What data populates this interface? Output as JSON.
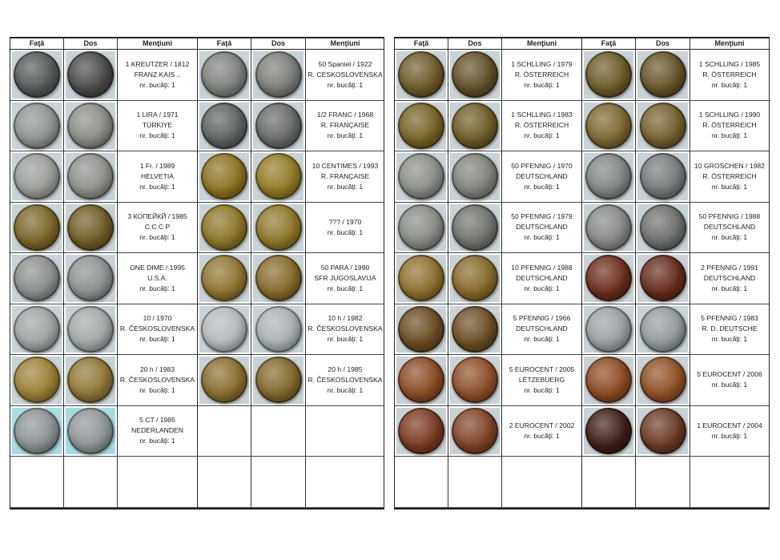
{
  "headers": [
    "Faţă",
    "Dos",
    "Menţiuni",
    "Faţă",
    "Dos",
    "Menţiuni"
  ],
  "photo_bg": "#c9d2d6",
  "tables": [
    {
      "left": [
        {
          "lines": [
            "1 KREUTZER / 1812",
            "FRANZ KAIS ..",
            "nr. bucăţi: 1"
          ],
          "front": "#55585a",
          "back": "#4a4a48"
        },
        {
          "lines": [
            "1 LIRA / 1971",
            "TÜRKIYE",
            "nr. bucăţi: 1"
          ],
          "front": "#8f9492",
          "back": "#8a8c86"
        },
        {
          "lines": [
            "1 Fr. / 1989",
            "HELVETIA",
            "nr. bucăţi: 1"
          ],
          "front": "#9a9c98",
          "back": "#8e908c"
        },
        {
          "lines": [
            "3 КОПЕЙКЙ / 1985",
            "C C C P",
            "nr. bucăţi: 1"
          ],
          "front": "#7a6528",
          "back": "#6e5c26"
        },
        {
          "lines": [
            "ONE DIME / 1995",
            "U.S.A.",
            "nr. bucăţi: 1"
          ],
          "front": "#8a8e8c",
          "back": "#8c9090"
        },
        {
          "lines": [
            "10 / 1970",
            "R. ČESKOSLOVENSKA",
            "nr. bucăţi: 1"
          ],
          "front": "#9ea3a4",
          "back": "#a2a7a8"
        },
        {
          "lines": [
            "20 h / 1983",
            "R. ČESKOSLOVENSKA",
            "nr. bucăţi: 1"
          ],
          "front": "#9b7f36",
          "back": "#8f7633"
        },
        {
          "lines": [
            "5 CT / 1985",
            "NEDERLANDEN",
            "nr. bucăţi: 1"
          ],
          "front": "#8c9294",
          "back": "#8f9597",
          "bg": "#a9dbe4"
        }
      ],
      "right": [
        {
          "lines": [
            "50 Spaniel / 1922",
            "R. CESKOSLOVENSKA",
            "nr. bucăţi: 1"
          ],
          "front": "#7d817c",
          "back": "#7a7d78"
        },
        {
          "lines": [
            "1/2 FRANC / 1968",
            "R. FRANÇAISE",
            "nr. bucăţi: 1"
          ],
          "front": "#5e6262",
          "back": "#676a69"
        },
        {
          "lines": [
            "10 CENTIMES / 1993",
            "R. FRANÇAISE",
            "nr. bucăţi: 1"
          ],
          "front": "#8a7220",
          "back": "#917a25"
        },
        {
          "lines": [
            "??? / 1970",
            "nr. bucăţi: 1"
          ],
          "front": "#8c7526",
          "back": "#8e7628"
        },
        {
          "lines": [
            "50 PARA / 1990",
            "SFR JUGOSLAVIJA",
            "nr. bucăţi: 1"
          ],
          "front": "#8f7430",
          "back": "#86692a"
        },
        {
          "lines": [
            "10 h / 1982",
            "R. ČESKOSLOVENSKA",
            "nr. bucăţi: 1"
          ],
          "front": "#b4b9bb",
          "back": "#aab0b2"
        },
        {
          "lines": [
            "20 h / 1985",
            "R. ČESKOSLOVENSKA",
            "nr. bucăţi: 1"
          ],
          "front": "#8a6d2e",
          "back": "#80672c"
        },
        null
      ]
    },
    {
      "left": [
        {
          "lines": [
            "1 SCHLLING / 1979",
            "R. ÖSTERREICH",
            "nr. bucăţi: 1"
          ],
          "front": "#6b5a2a",
          "back": "#5e5027"
        },
        {
          "lines": [
            "1 SCHLLING / 1983",
            "R. ÖSTERREICH",
            "nr. bucăţi: 1"
          ],
          "front": "#756226",
          "back": "#6d5c26"
        },
        {
          "lines": [
            "50 PFENNIG / 1970",
            "DEUTSCHLAND",
            "nr. bucăţi: 1"
          ],
          "front": "#8a8d88",
          "back": "#7f827d"
        },
        {
          "lines": [
            "50 PFENNIG / 1979",
            "DEUTSCHLAND",
            "nr. bucăţi: 1"
          ],
          "front": "#878a85",
          "back": "#6f726d"
        },
        {
          "lines": [
            "10 PFENNIG / 1988",
            "DEUTSCHLAND",
            "nr. bucăţi: 1"
          ],
          "front": "#8c6f2c",
          "back": "#86692a"
        },
        {
          "lines": [
            "5 PFENNIG / 1966",
            "DEUTSCHLAND",
            "nr. bucăţi: 1"
          ],
          "front": "#6a4a22",
          "back": "#6a4d24"
        },
        {
          "lines": [
            "5 EUROCENT / 2005",
            "LËTZEBUERG",
            "nr. bucăţi: 1"
          ],
          "front": "#8a4a24",
          "back": "#8c4e28"
        },
        {
          "lines": [
            "2 EUROCENT / 2002",
            "nr. bucăţi: 1"
          ],
          "front": "#7a3a22",
          "back": "#7e4226"
        }
      ],
      "right": [
        {
          "lines": [
            "1 SCHLLING / 1985",
            "R. ÖSTERREICH",
            "nr. bucăţi: 1"
          ],
          "front": "#6a5a2a",
          "back": "#645428"
        },
        {
          "lines": [
            "1 SCHLLING / 1990",
            "R. ÖSTERREICH",
            "nr. bucăţi: 1"
          ],
          "front": "#7a6630",
          "back": "#736030"
        },
        {
          "lines": [
            "10 GROSCHEN / 1982",
            "R. ÖSTERREICH",
            "nr. bucăţi: 1"
          ],
          "front": "#7f8584",
          "back": "#747a7a"
        },
        {
          "lines": [
            "50 PFENNIG / 1988",
            "DEUTSCHLAND",
            "nr. bucăţi: 1"
          ],
          "front": "#858884",
          "back": "#6c6f6b"
        },
        {
          "lines": [
            "2 PFENNIG / 1991",
            "DEUTSCHLAND",
            "nr. bucăţi: 1"
          ],
          "front": "#6a2e1c",
          "back": "#642c1c"
        },
        {
          "lines": [
            "5 PFENNIG / 1983",
            "R. D. DEUTSCHE",
            "nr. bucăţi: 1"
          ],
          "front": "#9aa0a2",
          "back": "#939a9c"
        },
        {
          "lines": [
            "5 EUROCENT / 2006",
            "nr. bucăţi: 1"
          ],
          "front": "#8c4a22",
          "back": "#8e5026"
        },
        {
          "lines": [
            "1 EUROCENT / 2004",
            "nr. bucăţi: 1"
          ],
          "front": "#3e1e16",
          "back": "#6a3a24"
        }
      ]
    }
  ]
}
